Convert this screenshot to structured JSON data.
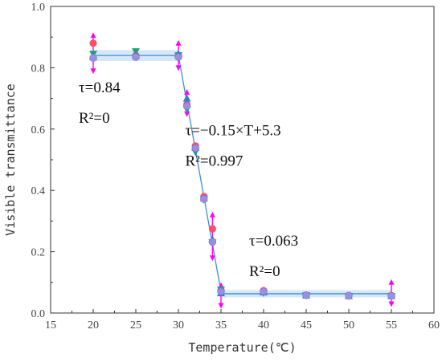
{
  "chart_data": {
    "type": "scatter",
    "xlabel": "Temperature(℃)",
    "ylabel": "Visible  transmittance",
    "xlim": [
      15,
      60
    ],
    "ylim": [
      0,
      1.0
    ],
    "xticks": [
      "15",
      "20",
      "25",
      "30",
      "35",
      "40",
      "45",
      "50",
      "55",
      "60"
    ],
    "yticks": [
      "0.0",
      "0.2",
      "0.4",
      "0.6",
      "0.8",
      "1.0"
    ],
    "grid": false,
    "colors": {
      "band": "#cfe4f7",
      "fit_line": "#3f8fd0",
      "error_bar": "#ff00ff",
      "red_circle": "#ff4d6a",
      "green_triangle": "#1fa27a",
      "blue_triangle": "#2f7fd4",
      "purple_circle": "#9a8fe0"
    },
    "x": [
      20,
      25,
      30,
      31,
      32,
      33,
      34,
      35,
      40,
      45,
      50,
      55
    ],
    "series": [
      {
        "marker": "red-circle",
        "values": [
          0.88,
          0.84,
          0.84,
          0.68,
          0.545,
          0.38,
          0.275,
          0.075,
          0.073,
          0.058,
          0.057,
          0.057
        ]
      },
      {
        "marker": "green-triangle-down",
        "values": [
          0.845,
          0.853,
          0.84,
          0.665,
          0.525,
          0.37,
          0.23,
          0.076,
          0.065,
          0.057,
          0.055,
          0.055
        ]
      },
      {
        "marker": "blue-triangle-up",
        "values": [
          0.835,
          0.84,
          0.845,
          0.7,
          0.54,
          0.375,
          0.24,
          0.065,
          0.068,
          0.058,
          0.056,
          0.056
        ]
      },
      {
        "marker": "purple-circle",
        "values": [
          0.832,
          0.835,
          0.835,
          0.675,
          0.538,
          0.372,
          0.232,
          0.07,
          0.07,
          0.058,
          0.057,
          0.056
        ]
      }
    ],
    "error_bars": [
      {
        "x": 20,
        "low": 0.79,
        "high": 0.905
      },
      {
        "x": 30,
        "low": 0.8,
        "high": 0.88
      },
      {
        "x": 31,
        "low": 0.65,
        "high": 0.72
      },
      {
        "x": 34,
        "low": 0.18,
        "high": 0.32
      },
      {
        "x": 35,
        "low": 0.025,
        "high": 0.09
      },
      {
        "x": 55,
        "low": 0.03,
        "high": 0.1
      }
    ],
    "fits": [
      {
        "x_start": 20,
        "x_end": 30,
        "y_start": 0.84,
        "y_end": 0.84,
        "band": 0.018
      },
      {
        "x_start": 30,
        "x_end": 35,
        "y_start": 0.84,
        "y_end": 0.07,
        "band": 0.004
      },
      {
        "x_start": 35,
        "x_end": 55,
        "y_start": 0.063,
        "y_end": 0.063,
        "band": 0.012
      }
    ],
    "annotations": [
      {
        "key": "a1l1",
        "text": "τ=0.84",
        "x": 20,
        "y": 0.72
      },
      {
        "key": "a1l2",
        "text": "R²=0",
        "x": 20,
        "y": 0.62
      },
      {
        "key": "a2l1",
        "text": "τ=−0.15×T+5.3",
        "x": 32.5,
        "y": 0.58
      },
      {
        "key": "a2l2",
        "text": "R²=0.997",
        "x": 32.5,
        "y": 0.48
      },
      {
        "key": "a3l1",
        "text": "τ=0.063",
        "x": 40,
        "y": 0.22
      },
      {
        "key": "a3l2",
        "text": "R²=0",
        "x": 40,
        "y": 0.12
      }
    ]
  }
}
